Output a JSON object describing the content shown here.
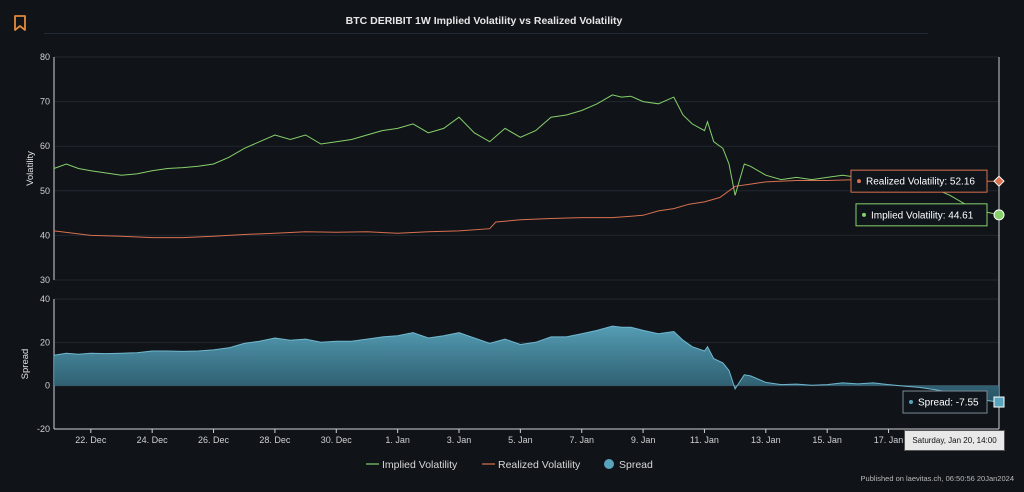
{
  "title": "BTC DERIBIT 1W Implied Volatility vs Realized Volatility",
  "credit": "Published on laevitas.ch, 06:50:56 20Jan2024",
  "icons": {
    "bookmark": "bookmark-icon"
  },
  "colors": {
    "implied": "#86d06a",
    "realized": "#d9704e",
    "spread": "#58a4bc",
    "background": "#101419"
  },
  "chart_data": {
    "type": "line",
    "x_tick_labels": [
      "22. Dec",
      "24. Dec",
      "26. Dec",
      "28. Dec",
      "30. Dec",
      "1. Jan",
      "3. Jan",
      "5. Jan",
      "7. Jan",
      "9. Jan",
      "11. Jan",
      "13. Jan",
      "15. Jan",
      "17. Jan"
    ],
    "x_range_days_dec": [
      20.8,
      51.6
    ],
    "upper_panel": {
      "ylabel": "Volatility",
      "ylim": [
        30,
        80
      ],
      "yticks": [
        30,
        40,
        50,
        60,
        70,
        80
      ]
    },
    "lower_panel": {
      "ylabel": "Spread",
      "ylim": [
        -20,
        40
      ],
      "yticks": [
        -20,
        0,
        20,
        40
      ]
    },
    "series": [
      {
        "name": "Implied Volatility",
        "panel": "upper",
        "x": [
          20.8,
          21.2,
          21.6,
          22.0,
          22.5,
          23.0,
          23.5,
          24.0,
          24.5,
          25.0,
          25.5,
          26.0,
          26.5,
          27.0,
          27.5,
          28.0,
          28.5,
          29.0,
          29.5,
          30.0,
          30.5,
          31.0,
          31.5,
          32.0,
          32.5,
          33.0,
          33.5,
          34.0,
          34.5,
          35.0,
          35.5,
          36.0,
          36.5,
          37.0,
          37.5,
          38.0,
          38.5,
          39.0,
          39.3,
          39.6,
          40.0,
          40.5,
          41.0,
          41.3,
          41.6,
          42.0,
          42.1,
          42.3,
          42.6,
          42.8,
          43.0,
          43.3,
          43.5,
          44.0,
          44.5,
          45.0,
          45.5,
          46.0,
          46.5,
          47.0,
          47.5,
          48.0,
          48.5,
          49.0,
          49.5,
          50.0,
          50.5,
          51.0,
          51.6
        ],
        "values": [
          55.0,
          56.0,
          55.0,
          54.5,
          54.0,
          53.5,
          53.8,
          54.5,
          55.0,
          55.2,
          55.5,
          56.0,
          57.5,
          59.5,
          61.0,
          62.5,
          61.5,
          62.5,
          60.5,
          61.0,
          61.5,
          62.5,
          63.5,
          64.0,
          65.0,
          63.0,
          64.0,
          66.5,
          63.0,
          61.0,
          64.0,
          62.0,
          63.5,
          66.5,
          67.0,
          68.0,
          69.5,
          71.5,
          71.0,
          71.2,
          70.0,
          69.5,
          71.0,
          67.0,
          65.0,
          63.5,
          65.5,
          61.0,
          59.5,
          56.0,
          49.0,
          56.0,
          55.5,
          53.5,
          52.5,
          53.0,
          52.5,
          53.0,
          53.5,
          53.0,
          53.5,
          53.0,
          52.0,
          51.5,
          50.5,
          49.0,
          47.0,
          45.5,
          44.61
        ]
      },
      {
        "name": "Realized Volatility",
        "panel": "upper",
        "x": [
          20.8,
          22.0,
          23.0,
          24.0,
          25.0,
          26.0,
          27.0,
          28.0,
          29.0,
          30.0,
          31.0,
          32.0,
          33.0,
          34.0,
          35.0,
          35.2,
          36.0,
          37.0,
          38.0,
          39.0,
          40.0,
          40.5,
          41.0,
          41.5,
          42.0,
          42.5,
          43.0,
          43.5,
          44.0,
          45.0,
          46.0,
          47.0,
          48.0,
          49.0,
          50.0,
          51.0,
          51.6
        ],
        "values": [
          41.0,
          40.0,
          39.8,
          39.5,
          39.5,
          39.8,
          40.2,
          40.5,
          40.8,
          40.7,
          40.8,
          40.5,
          40.8,
          41.0,
          41.5,
          43.0,
          43.5,
          43.8,
          44.0,
          44.0,
          44.5,
          45.5,
          46.0,
          47.0,
          47.5,
          48.5,
          51.0,
          51.5,
          52.0,
          52.3,
          52.3,
          52.5,
          52.2,
          52.3,
          52.2,
          52.16,
          52.16
        ]
      },
      {
        "name": "Spread",
        "panel": "lower",
        "type": "area",
        "x": [
          20.8,
          21.2,
          21.6,
          22.0,
          22.5,
          23.0,
          23.5,
          24.0,
          24.5,
          25.0,
          25.5,
          26.0,
          26.5,
          27.0,
          27.5,
          28.0,
          28.5,
          29.0,
          29.5,
          30.0,
          30.5,
          31.0,
          31.5,
          32.0,
          32.5,
          33.0,
          33.5,
          34.0,
          34.5,
          35.0,
          35.5,
          36.0,
          36.5,
          37.0,
          37.5,
          38.0,
          38.5,
          39.0,
          39.3,
          39.6,
          40.0,
          40.5,
          41.0,
          41.3,
          41.6,
          42.0,
          42.1,
          42.3,
          42.6,
          42.8,
          43.0,
          43.3,
          43.5,
          44.0,
          44.5,
          45.0,
          45.5,
          46.0,
          46.5,
          47.0,
          47.5,
          48.0,
          48.5,
          49.0,
          49.5,
          50.0,
          50.5,
          51.0,
          51.6
        ],
        "values": [
          14.0,
          15.0,
          14.5,
          15.0,
          14.8,
          15.0,
          15.2,
          16.0,
          16.0,
          15.8,
          16.0,
          16.5,
          17.5,
          19.5,
          20.5,
          22.0,
          21.0,
          21.5,
          20.0,
          20.5,
          20.5,
          21.5,
          22.5,
          23.0,
          24.5,
          22.0,
          23.0,
          24.5,
          22.0,
          19.5,
          21.5,
          19.0,
          20.0,
          22.5,
          22.5,
          24.0,
          25.5,
          27.5,
          27.0,
          27.0,
          25.5,
          24.0,
          25.0,
          21.0,
          18.0,
          16.0,
          18.0,
          12.5,
          10.5,
          7.0,
          -1.5,
          5.0,
          4.5,
          1.5,
          0.5,
          0.7,
          0.2,
          0.5,
          1.3,
          0.8,
          1.3,
          0.5,
          -0.2,
          -0.8,
          -1.8,
          -3.0,
          -5.0,
          -6.5,
          -7.55
        ]
      }
    ],
    "tooltips": {
      "realized": "Realized Volatility: 52.16",
      "implied": "Implied Volatility: 44.61",
      "spread": "Spread: -7.55",
      "x": "Saturday, Jan 20, 14:00"
    },
    "legend": [
      {
        "name": "Implied Volatility",
        "symbol": "line"
      },
      {
        "name": "Realized Volatility",
        "symbol": "line"
      },
      {
        "name": "Spread",
        "symbol": "circle"
      }
    ],
    "legend_position": "bottom-center",
    "grid": true
  }
}
